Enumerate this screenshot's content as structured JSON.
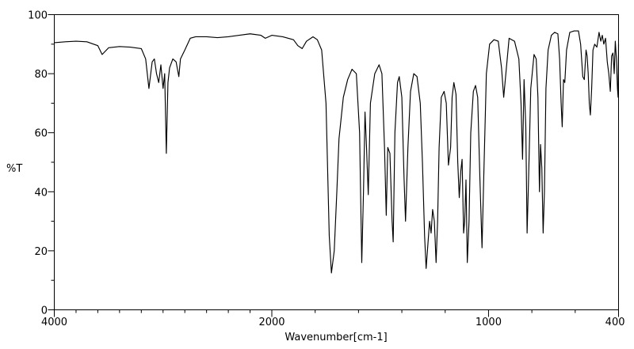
{
  "chart_data": {
    "type": "line",
    "title": "",
    "xlabel": "Wavenumber[cm-1]",
    "ylabel": "%T",
    "xlim": [
      4000,
      400
    ],
    "ylim": [
      0,
      100
    ],
    "x_ticks": [
      4000,
      2000,
      1000,
      400
    ],
    "x_tick_labels": [
      "4000",
      "2000",
      "1000",
      "400"
    ],
    "y_ticks": [
      0,
      20,
      40,
      60,
      80,
      100
    ],
    "y_tick_labels": [
      "0",
      "20",
      "40",
      "60",
      "80",
      "100"
    ],
    "x_scale": "IR wavenumber axis with scale change at 2000 cm-1",
    "grid": false,
    "series": [
      {
        "color": "#000000",
        "points": [
          [
            4000,
            90.5
          ],
          [
            3900,
            90.8
          ],
          [
            3800,
            91.0
          ],
          [
            3700,
            90.8
          ],
          [
            3600,
            89.5
          ],
          [
            3560,
            86.5
          ],
          [
            3500,
            88.8
          ],
          [
            3400,
            89.2
          ],
          [
            3300,
            89.0
          ],
          [
            3200,
            88.5
          ],
          [
            3160,
            85.0
          ],
          [
            3130,
            75.0
          ],
          [
            3100,
            84.0
          ],
          [
            3080,
            85.0
          ],
          [
            3060,
            80.0
          ],
          [
            3040,
            77.0
          ],
          [
            3020,
            83.0
          ],
          [
            3000,
            75.0
          ],
          [
            2985,
            80.0
          ],
          [
            2970,
            53.0
          ],
          [
            2955,
            77.0
          ],
          [
            2940,
            82.0
          ],
          [
            2910,
            85.0
          ],
          [
            2880,
            84.0
          ],
          [
            2855,
            79.0
          ],
          [
            2840,
            85.0
          ],
          [
            2800,
            88.0
          ],
          [
            2750,
            92.0
          ],
          [
            2700,
            92.5
          ],
          [
            2600,
            92.5
          ],
          [
            2500,
            92.2
          ],
          [
            2400,
            92.5
          ],
          [
            2300,
            93.0
          ],
          [
            2200,
            93.5
          ],
          [
            2100,
            93.0
          ],
          [
            2060,
            92.0
          ],
          [
            2000,
            93.0
          ],
          [
            1950,
            92.5
          ],
          [
            1900,
            91.5
          ],
          [
            1880,
            89.5
          ],
          [
            1860,
            88.5
          ],
          [
            1840,
            91.0
          ],
          [
            1810,
            92.5
          ],
          [
            1790,
            91.5
          ],
          [
            1770,
            88.0
          ],
          [
            1750,
            70.0
          ],
          [
            1735,
            25.0
          ],
          [
            1725,
            12.5
          ],
          [
            1712,
            20.0
          ],
          [
            1700,
            40.0
          ],
          [
            1690,
            58.0
          ],
          [
            1670,
            72.0
          ],
          [
            1650,
            78.0
          ],
          [
            1630,
            81.5
          ],
          [
            1610,
            80.0
          ],
          [
            1595,
            60.0
          ],
          [
            1585,
            16.0
          ],
          [
            1577,
            40.0
          ],
          [
            1570,
            67.0
          ],
          [
            1563,
            55.0
          ],
          [
            1555,
            39.0
          ],
          [
            1545,
            70.0
          ],
          [
            1525,
            80.0
          ],
          [
            1505,
            83.0
          ],
          [
            1492,
            80.0
          ],
          [
            1480,
            55.0
          ],
          [
            1472,
            32.0
          ],
          [
            1465,
            55.0
          ],
          [
            1455,
            53.0
          ],
          [
            1445,
            30.0
          ],
          [
            1440,
            23.0
          ],
          [
            1432,
            60.0
          ],
          [
            1420,
            77.0
          ],
          [
            1412,
            79.0
          ],
          [
            1400,
            72.0
          ],
          [
            1390,
            45.0
          ],
          [
            1383,
            30.0
          ],
          [
            1372,
            55.0
          ],
          [
            1360,
            74.0
          ],
          [
            1345,
            80.0
          ],
          [
            1330,
            79.0
          ],
          [
            1315,
            70.0
          ],
          [
            1305,
            50.0
          ],
          [
            1295,
            25.0
          ],
          [
            1288,
            14.0
          ],
          [
            1280,
            22.0
          ],
          [
            1272,
            30.0
          ],
          [
            1265,
            26.0
          ],
          [
            1258,
            34.0
          ],
          [
            1250,
            30.0
          ],
          [
            1242,
            16.0
          ],
          [
            1235,
            30.0
          ],
          [
            1228,
            55.0
          ],
          [
            1218,
            72.0
          ],
          [
            1205,
            74.0
          ],
          [
            1195,
            70.0
          ],
          [
            1185,
            49.0
          ],
          [
            1175,
            55.0
          ],
          [
            1168,
            72.0
          ],
          [
            1160,
            77.0
          ],
          [
            1150,
            73.0
          ],
          [
            1142,
            50.0
          ],
          [
            1135,
            38.0
          ],
          [
            1128,
            47.0
          ],
          [
            1122,
            51.0
          ],
          [
            1115,
            26.0
          ],
          [
            1110,
            30.0
          ],
          [
            1104,
            44.0
          ],
          [
            1098,
            16.0
          ],
          [
            1090,
            30.0
          ],
          [
            1082,
            60.0
          ],
          [
            1070,
            74.0
          ],
          [
            1060,
            76.0
          ],
          [
            1050,
            72.0
          ],
          [
            1040,
            45.0
          ],
          [
            1030,
            21.0
          ],
          [
            1022,
            45.0
          ],
          [
            1010,
            80.0
          ],
          [
            995,
            90.0
          ],
          [
            975,
            91.5
          ],
          [
            955,
            91.0
          ],
          [
            940,
            82.0
          ],
          [
            930,
            72.0
          ],
          [
            920,
            80.0
          ],
          [
            905,
            92.0
          ],
          [
            880,
            91.0
          ],
          [
            860,
            85.0
          ],
          [
            850,
            70.0
          ],
          [
            843,
            51.0
          ],
          [
            836,
            78.0
          ],
          [
            828,
            62.0
          ],
          [
            822,
            26.0
          ],
          [
            815,
            45.0
          ],
          [
            805,
            75.0
          ],
          [
            790,
            86.5
          ],
          [
            780,
            85.0
          ],
          [
            772,
            72.0
          ],
          [
            765,
            40.0
          ],
          [
            760,
            56.0
          ],
          [
            754,
            48.0
          ],
          [
            748,
            26.0
          ],
          [
            742,
            40.0
          ],
          [
            735,
            75.0
          ],
          [
            725,
            88.0
          ],
          [
            710,
            93.0
          ],
          [
            695,
            94.0
          ],
          [
            680,
            93.5
          ],
          [
            672,
            85.0
          ],
          [
            665,
            70.0
          ],
          [
            660,
            62.0
          ],
          [
            654,
            78.0
          ],
          [
            648,
            77.0
          ],
          [
            640,
            88.0
          ],
          [
            625,
            94.0
          ],
          [
            605,
            94.5
          ],
          [
            585,
            94.5
          ],
          [
            575,
            90.0
          ],
          [
            565,
            79.0
          ],
          [
            558,
            78.0
          ],
          [
            550,
            88.0
          ],
          [
            545,
            86.0
          ],
          [
            540,
            80.0
          ],
          [
            535,
            70.0
          ],
          [
            530,
            66.0
          ],
          [
            524,
            75.0
          ],
          [
            518,
            88.0
          ],
          [
            510,
            90.0
          ],
          [
            500,
            89.0
          ],
          [
            490,
            94.0
          ],
          [
            482,
            91.0
          ],
          [
            475,
            93.0
          ],
          [
            468,
            90.0
          ],
          [
            460,
            92.0
          ],
          [
            452,
            84.0
          ],
          [
            445,
            80.0
          ],
          [
            438,
            74.0
          ],
          [
            432,
            86.0
          ],
          [
            426,
            87.0
          ],
          [
            420,
            80.0
          ],
          [
            415,
            91.0
          ],
          [
            410,
            85.0
          ],
          [
            405,
            75.0
          ],
          [
            402,
            72.0
          ],
          [
            400,
            90.0
          ]
        ]
      }
    ]
  }
}
